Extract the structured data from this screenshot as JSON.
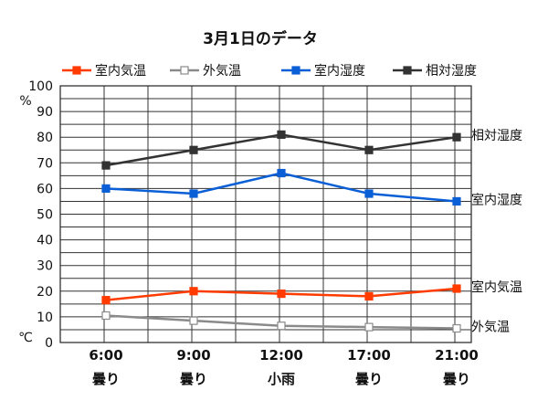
{
  "chart_data": {
    "type": "line",
    "title": "3月1日のデータ",
    "categories": [
      "6:00",
      "9:00",
      "12:00",
      "17:00",
      "21:00"
    ],
    "weather": [
      "曇り",
      "曇り",
      "小雨",
      "曇り",
      "曇り"
    ],
    "ylim": [
      0,
      100
    ],
    "yticks": [
      0,
      10,
      20,
      30,
      40,
      50,
      60,
      70,
      80,
      90,
      100
    ],
    "ylabel_top": "%",
    "ylabel_bottom": "℃",
    "grid": true,
    "legend_position": "top",
    "series": [
      {
        "name": "室内気温",
        "values": [
          16.5,
          20,
          19,
          18,
          21
        ],
        "color": "#ff3b00",
        "marker": "square-filled",
        "end_label": "室内気温"
      },
      {
        "name": "外気温",
        "values": [
          10.5,
          8.5,
          6.5,
          6,
          5.5
        ],
        "color": "#8a8a8a",
        "marker": "square-open",
        "end_label": "外気温"
      },
      {
        "name": "室内湿度",
        "values": [
          60,
          58,
          66,
          58,
          55
        ],
        "color": "#0a5fd6",
        "marker": "square-filled",
        "end_label": "室内湿度"
      },
      {
        "name": "相対湿度",
        "values": [
          69,
          75,
          81,
          75,
          80
        ],
        "color": "#333333",
        "marker": "square-filled",
        "end_label": "相対湿度"
      }
    ]
  }
}
